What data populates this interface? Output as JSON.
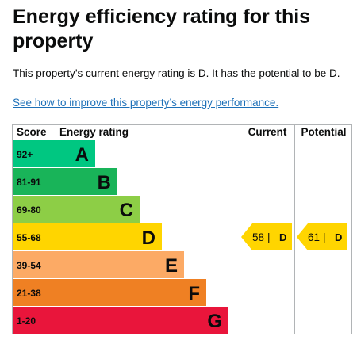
{
  "heading": {
    "title": "Energy efficiency rating for this property"
  },
  "summary": {
    "text": "This property’s current energy rating is D. It has the potential to be D."
  },
  "link": {
    "text": "See how to improve this property’s energy performance."
  },
  "table": {
    "headers": {
      "score": "Score",
      "rating": "Energy rating",
      "current": "Current",
      "potential": "Potential"
    }
  },
  "bands": [
    {
      "range": "92+",
      "letter": "A",
      "color": "#00c781"
    },
    {
      "range": "81-91",
      "letter": "B",
      "color": "#19b459"
    },
    {
      "range": "69-80",
      "letter": "C",
      "color": "#8dce46"
    },
    {
      "range": "55-68",
      "letter": "D",
      "color": "#ffd500"
    },
    {
      "range": "39-54",
      "letter": "E",
      "color": "#fcaa65"
    },
    {
      "range": "21-38",
      "letter": "F",
      "color": "#ef8023"
    },
    {
      "range": "1-20",
      "letter": "G",
      "color": "#e9153b"
    }
  ],
  "current": {
    "score": "58",
    "separator": "|",
    "letter": "D",
    "band_index": 3
  },
  "potential": {
    "score": "61",
    "separator": "|",
    "letter": "D",
    "band_index": 3
  },
  "colors": {
    "grid": "#b1b4b6",
    "link": "#1d70b8",
    "text": "#0b0c0c"
  }
}
